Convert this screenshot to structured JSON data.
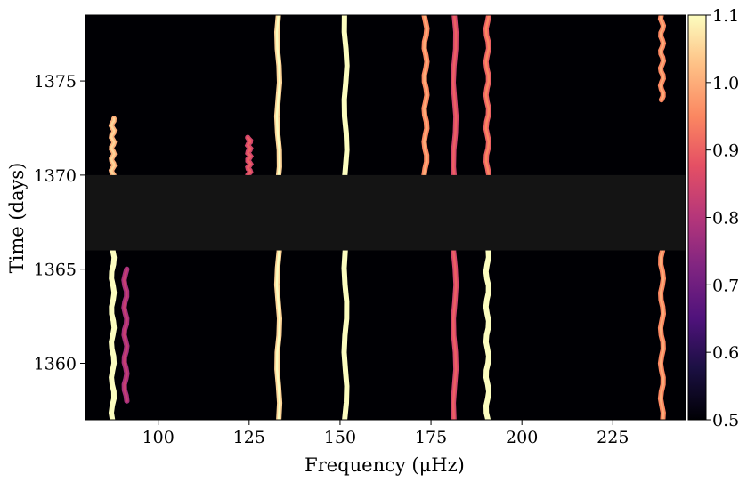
{
  "chart_data": {
    "type": "heatmap",
    "title": "",
    "xlabel": "Frequency (μHz)",
    "ylabel": "Time (days)",
    "xlim": [
      80,
      245
    ],
    "ylim": [
      1357,
      1378.5
    ],
    "x_ticks": [
      100,
      125,
      150,
      175,
      200,
      225
    ],
    "y_ticks": [
      1360,
      1365,
      1370,
      1375
    ],
    "colormap": "magma",
    "colorbar": {
      "min": 0.5,
      "max": 1.1,
      "ticks": [
        "0.5",
        "0.6",
        "0.7",
        "0.8",
        "0.9",
        "1.0",
        "1.1"
      ]
    },
    "data_gap": {
      "t_start": 1366,
      "t_end": 1370,
      "color": "#141414"
    },
    "ridges": [
      {
        "freq": 87.5,
        "peak": 1.1,
        "t_from": 1357,
        "t_to": 1366
      },
      {
        "freq": 87.5,
        "peak": 1.0,
        "t_from": 1370,
        "t_to": 1373
      },
      {
        "freq": 91,
        "peak": 0.78,
        "t_from": 1358,
        "t_to": 1365
      },
      {
        "freq": 133,
        "peak": 1.05,
        "t_from": 1357,
        "t_to": 1378.5
      },
      {
        "freq": 151.5,
        "peak": 1.1,
        "t_from": 1357,
        "t_to": 1378.5
      },
      {
        "freq": 173.5,
        "peak": 0.95,
        "t_from": 1370,
        "t_to": 1378.5
      },
      {
        "freq": 181.5,
        "peak": 0.85,
        "t_from": 1357,
        "t_to": 1378.5
      },
      {
        "freq": 190.5,
        "peak": 1.1,
        "t_from": 1357,
        "t_to": 1366
      },
      {
        "freq": 190.5,
        "peak": 0.9,
        "t_from": 1370,
        "t_to": 1378.5
      },
      {
        "freq": 238.5,
        "peak": 0.95,
        "t_from": 1357,
        "t_to": 1366
      },
      {
        "freq": 238.5,
        "peak": 0.95,
        "t_from": 1374,
        "t_to": 1378.5
      },
      {
        "freq": 125,
        "peak": 0.85,
        "t_from": 1370,
        "t_to": 1372
      }
    ]
  }
}
